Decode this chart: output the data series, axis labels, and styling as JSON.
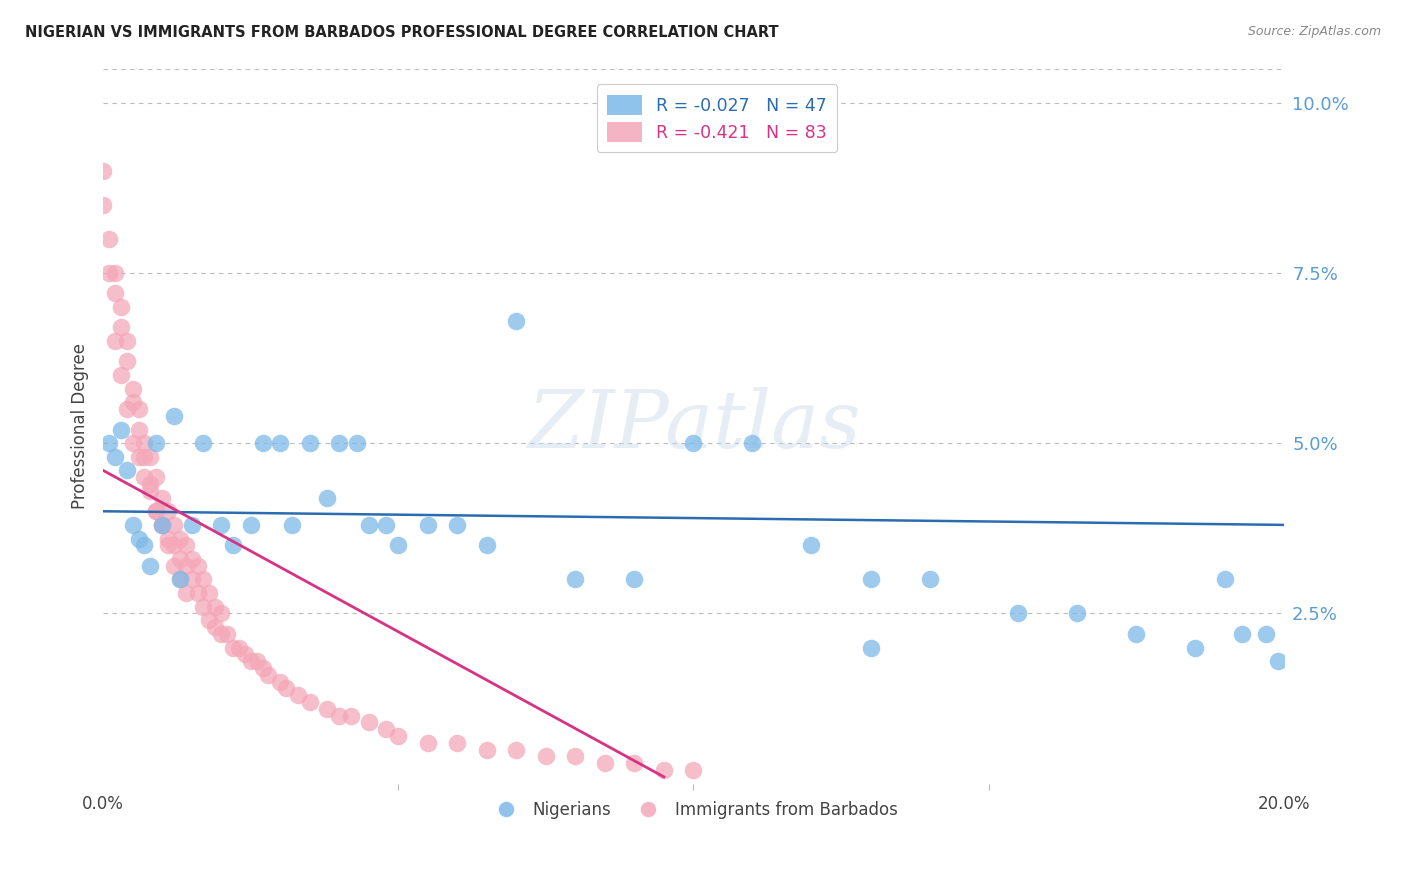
{
  "title": "NIGERIAN VS IMMIGRANTS FROM BARBADOS PROFESSIONAL DEGREE CORRELATION CHART",
  "source": "Source: ZipAtlas.com",
  "ylabel": "Professional Degree",
  "right_yticks": [
    "10.0%",
    "7.5%",
    "5.0%",
    "2.5%"
  ],
  "right_ytick_vals": [
    0.1,
    0.075,
    0.05,
    0.025
  ],
  "watermark_text": "ZIPatlas",
  "legend1_label": "R = -0.027   N = 47",
  "legend2_label": "R = -0.421   N = 83",
  "blue_color": "#7cb9e8",
  "pink_color": "#f4a7b9",
  "line_blue": "#2b6cb0",
  "line_pink": "#d63384",
  "blue_scatter_x": [
    0.001,
    0.002,
    0.003,
    0.004,
    0.005,
    0.006,
    0.007,
    0.008,
    0.009,
    0.01,
    0.012,
    0.013,
    0.015,
    0.017,
    0.02,
    0.022,
    0.025,
    0.027,
    0.03,
    0.032,
    0.035,
    0.038,
    0.04,
    0.043,
    0.045,
    0.048,
    0.05,
    0.055,
    0.06,
    0.065,
    0.07,
    0.08,
    0.09,
    0.1,
    0.11,
    0.12,
    0.13,
    0.14,
    0.155,
    0.165,
    0.175,
    0.185,
    0.19,
    0.193,
    0.197,
    0.199,
    0.13
  ],
  "blue_scatter_y": [
    0.05,
    0.048,
    0.052,
    0.046,
    0.038,
    0.036,
    0.035,
    0.032,
    0.05,
    0.038,
    0.054,
    0.03,
    0.038,
    0.05,
    0.038,
    0.035,
    0.038,
    0.05,
    0.05,
    0.038,
    0.05,
    0.042,
    0.05,
    0.05,
    0.038,
    0.038,
    0.035,
    0.038,
    0.038,
    0.035,
    0.068,
    0.03,
    0.03,
    0.05,
    0.05,
    0.035,
    0.03,
    0.03,
    0.025,
    0.025,
    0.022,
    0.02,
    0.03,
    0.022,
    0.022,
    0.018,
    0.02
  ],
  "pink_scatter_x": [
    0.0,
    0.001,
    0.002,
    0.002,
    0.003,
    0.003,
    0.004,
    0.004,
    0.005,
    0.005,
    0.006,
    0.006,
    0.007,
    0.007,
    0.008,
    0.008,
    0.009,
    0.009,
    0.01,
    0.01,
    0.011,
    0.011,
    0.012,
    0.012,
    0.013,
    0.013,
    0.014,
    0.014,
    0.015,
    0.015,
    0.016,
    0.016,
    0.017,
    0.017,
    0.018,
    0.018,
    0.019,
    0.019,
    0.02,
    0.02,
    0.021,
    0.022,
    0.023,
    0.024,
    0.025,
    0.026,
    0.027,
    0.028,
    0.03,
    0.031,
    0.033,
    0.035,
    0.038,
    0.04,
    0.042,
    0.045,
    0.048,
    0.05,
    0.055,
    0.06,
    0.065,
    0.07,
    0.075,
    0.08,
    0.085,
    0.09,
    0.095,
    0.1,
    0.0,
    0.001,
    0.002,
    0.003,
    0.004,
    0.005,
    0.006,
    0.007,
    0.008,
    0.009,
    0.01,
    0.011,
    0.012,
    0.013,
    0.014
  ],
  "pink_scatter_y": [
    0.085,
    0.075,
    0.075,
    0.065,
    0.07,
    0.06,
    0.065,
    0.055,
    0.058,
    0.05,
    0.055,
    0.048,
    0.05,
    0.045,
    0.048,
    0.043,
    0.045,
    0.04,
    0.042,
    0.038,
    0.04,
    0.036,
    0.038,
    0.035,
    0.036,
    0.033,
    0.035,
    0.032,
    0.033,
    0.03,
    0.032,
    0.028,
    0.03,
    0.026,
    0.028,
    0.024,
    0.026,
    0.023,
    0.025,
    0.022,
    0.022,
    0.02,
    0.02,
    0.019,
    0.018,
    0.018,
    0.017,
    0.016,
    0.015,
    0.014,
    0.013,
    0.012,
    0.011,
    0.01,
    0.01,
    0.009,
    0.008,
    0.007,
    0.006,
    0.006,
    0.005,
    0.005,
    0.004,
    0.004,
    0.003,
    0.003,
    0.002,
    0.002,
    0.09,
    0.08,
    0.072,
    0.067,
    0.062,
    0.056,
    0.052,
    0.048,
    0.044,
    0.04,
    0.038,
    0.035,
    0.032,
    0.03,
    0.028
  ],
  "blue_line_x": [
    0.0,
    0.2
  ],
  "blue_line_y": [
    0.04,
    0.038
  ],
  "pink_line_x": [
    0.0,
    0.095
  ],
  "pink_line_y": [
    0.046,
    0.001
  ],
  "xlim": [
    0.0,
    0.2
  ],
  "ylim": [
    0.0,
    0.105
  ],
  "xtick_vals": [
    0.0,
    0.2
  ],
  "xtick_labels": [
    "0.0%",
    "20.0%"
  ],
  "background_color": "#ffffff",
  "grid_color": "#bbbbbb",
  "title_color": "#222222",
  "source_color": "#888888",
  "ylabel_color": "#444444",
  "ytick_color": "#5b9bd5",
  "xtick_color": "#444444",
  "legend_text_color1": "#2b6cb0",
  "legend_text_color2": "#d63384"
}
